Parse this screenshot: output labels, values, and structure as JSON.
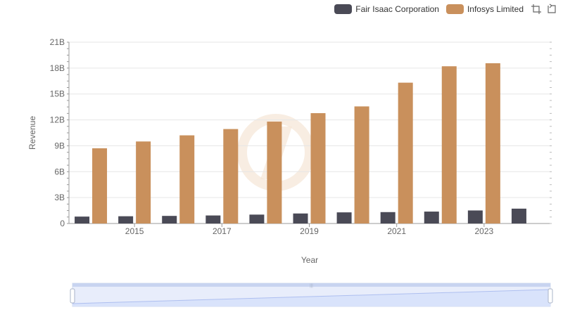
{
  "chart_data": {
    "type": "bar",
    "categories": [
      "2014",
      "2015",
      "2016",
      "2017",
      "2018",
      "2019",
      "2020",
      "2021",
      "2022",
      "2023",
      "2024"
    ],
    "xtick_labels": [
      "2015",
      "2017",
      "2019",
      "2021",
      "2023"
    ],
    "xlabel": "Year",
    "ylabel": "Revenue",
    "ylim": [
      0,
      21000000000
    ],
    "yticks": [
      0,
      3000000000,
      6000000000,
      9000000000,
      12000000000,
      15000000000,
      18000000000,
      21000000000
    ],
    "ytick_labels": [
      "0",
      "3B",
      "6B",
      "9B",
      "12B",
      "15B",
      "18B",
      "21B"
    ],
    "grid": true,
    "legend_position": "top-right",
    "series": [
      {
        "name": "Fair Isaac Corporation",
        "color": "#4a4a56",
        "values": [
          800000000,
          840000000,
          880000000,
          930000000,
          1030000000,
          1160000000,
          1290000000,
          1320000000,
          1380000000,
          1510000000,
          1720000000
        ]
      },
      {
        "name": "Infosys Limited",
        "color": "#c9905c",
        "values": [
          8710000000,
          9500000000,
          10210000000,
          10940000000,
          11800000000,
          12780000000,
          13560000000,
          16310000000,
          18210000000,
          18560000000,
          null
        ]
      }
    ]
  },
  "toolbar": {
    "zoom_icon": "crop-zoom-icon",
    "reset_icon": "restore-icon"
  },
  "datazoom": {
    "start_percent": 0,
    "end_percent": 100
  }
}
